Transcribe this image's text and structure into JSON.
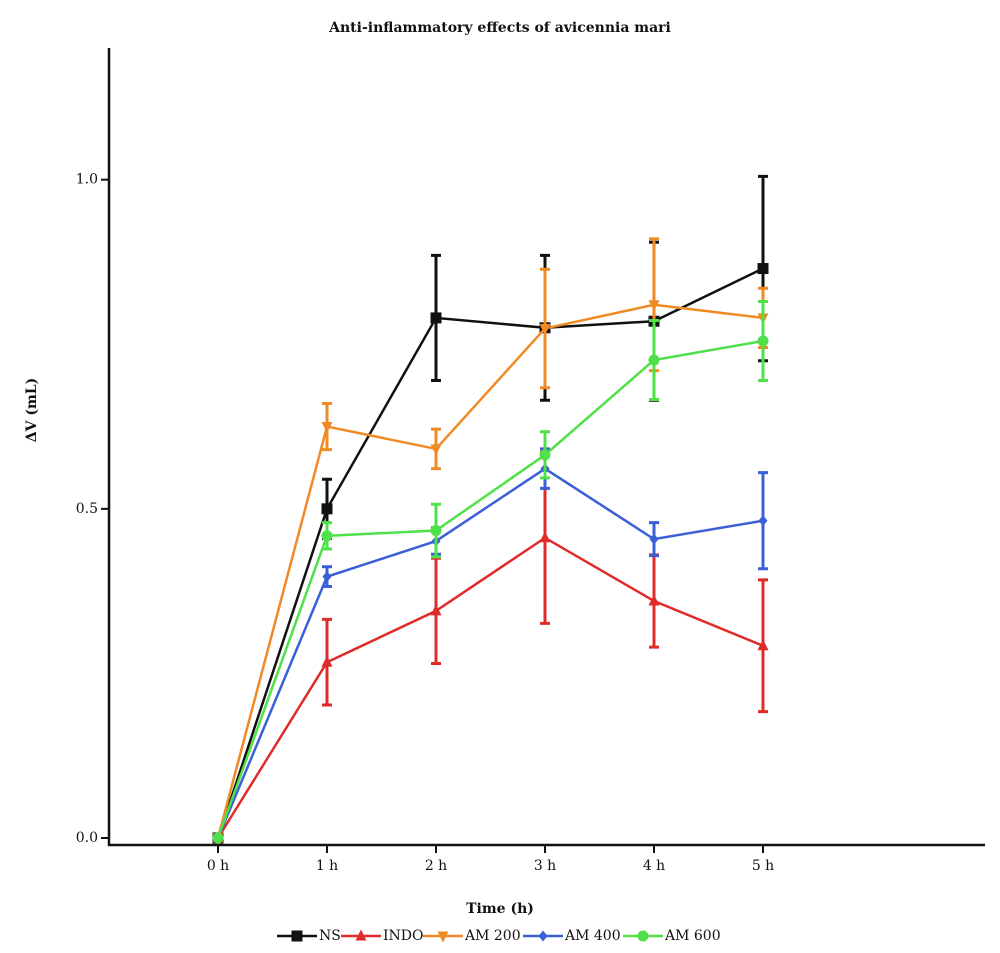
{
  "chart_data": {
    "type": "line",
    "title": "Anti-inflammatory effects of avicennia mari",
    "x_label": "Time (h)",
    "y_label": "ΔV (mL)",
    "categories": [
      "0 h",
      "1 h",
      "2 h",
      "3 h",
      "4 h",
      "5 h"
    ],
    "ylim": [
      0,
      1.2
    ],
    "yticks": [
      {
        "value": 0,
        "label": "0.0"
      },
      0.5,
      {
        "value": 1,
        "label": "1.0"
      }
    ],
    "legend": "bottom",
    "series": [
      {
        "name": "NS",
        "color": "#111111",
        "marker": "square",
        "values": [
          0,
          0.5,
          0.79,
          0.775,
          0.785,
          0.865
        ],
        "errors": [
          null,
          0.045,
          0.095,
          0.11,
          0.12,
          0.14
        ]
      },
      {
        "name": "INDO",
        "color": "#e02b2b",
        "marker": "triangle-up",
        "values": [
          0,
          0.267,
          0.345,
          0.456,
          0.36,
          0.292
        ],
        "errors": [
          null,
          0.065,
          0.08,
          0.13,
          0.07,
          0.1
        ]
      },
      {
        "name": "AM 200",
        "color": "#f08a24",
        "marker": "triangle-down",
        "values": [
          0,
          0.625,
          0.591,
          0.774,
          0.81,
          0.79
        ],
        "errors": [
          null,
          0.035,
          0.03,
          0.09,
          0.1,
          0.045
        ]
      },
      {
        "name": "AM 400",
        "color": "#3b5fd6",
        "marker": "diamond",
        "values": [
          0,
          0.397,
          0.451,
          0.561,
          0.454,
          0.482
        ],
        "errors": [
          null,
          0.015,
          0.02,
          0.03,
          0.025,
          0.073
        ]
      },
      {
        "name": "AM 600",
        "color": "#4fe04a",
        "marker": "circle",
        "values": [
          0,
          0.459,
          0.467,
          0.582,
          0.726,
          0.755
        ],
        "errors": [
          null,
          0.02,
          0.04,
          0.035,
          0.06,
          0.06
        ]
      }
    ]
  }
}
